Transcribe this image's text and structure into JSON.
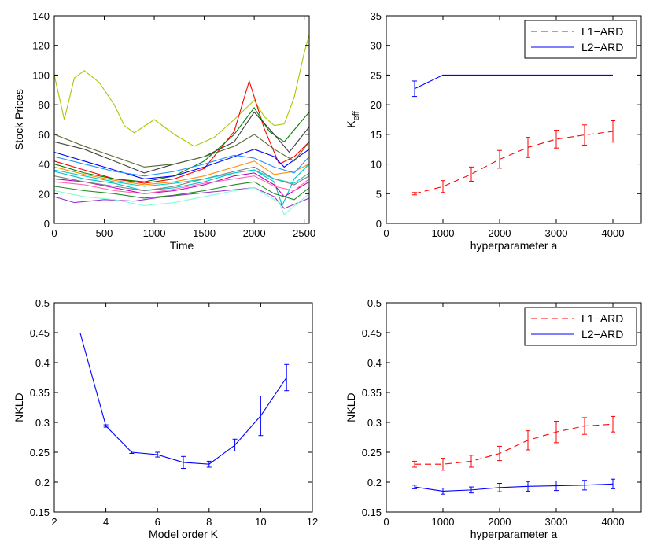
{
  "chart_data": [
    {
      "id": "stocks",
      "type": "line",
      "xlabel": "Time",
      "ylabel": "Stock Prices",
      "xlim": [
        0,
        2550
      ],
      "ylim": [
        0,
        140
      ],
      "xticks": [
        0,
        500,
        1000,
        1500,
        2000,
        2500
      ],
      "yticks": [
        0,
        20,
        40,
        60,
        80,
        100,
        120,
        140
      ],
      "grid": false,
      "series": [
        {
          "color": "#a8c800",
          "x": [
            0,
            100,
            200,
            300,
            450,
            600,
            700,
            800,
            1000,
            1200,
            1400,
            1600,
            1800,
            2000,
            2100,
            2200,
            2300,
            2400,
            2500,
            2550
          ],
          "values": [
            100,
            70,
            98,
            103,
            95,
            80,
            66,
            61,
            70,
            60,
            52,
            58,
            70,
            83,
            72,
            66,
            67,
            85,
            115,
            127
          ]
        },
        {
          "color": "#ff0000",
          "x": [
            0,
            300,
            600,
            900,
            1200,
            1500,
            1800,
            1950,
            2100,
            2250,
            2400,
            2550
          ],
          "values": [
            42,
            36,
            30,
            27,
            30,
            37,
            62,
            96,
            64,
            40,
            45,
            55
          ]
        },
        {
          "color": "#008000",
          "x": [
            0,
            300,
            600,
            900,
            1200,
            1500,
            1800,
            2000,
            2150,
            2300,
            2550
          ],
          "values": [
            40,
            34,
            30,
            28,
            32,
            42,
            60,
            78,
            62,
            55,
            75
          ]
        },
        {
          "color": "#404040",
          "x": [
            0,
            300,
            600,
            900,
            1200,
            1500,
            1800,
            2000,
            2200,
            2350,
            2550
          ],
          "values": [
            55,
            50,
            42,
            34,
            40,
            45,
            55,
            75,
            60,
            48,
            65
          ]
        },
        {
          "color": "#0000ff",
          "x": [
            0,
            300,
            600,
            900,
            1200,
            1500,
            1800,
            2000,
            2200,
            2300,
            2550
          ],
          "values": [
            48,
            42,
            36,
            30,
            32,
            38,
            45,
            50,
            45,
            38,
            50
          ]
        },
        {
          "color": "#00bfbf",
          "x": [
            0,
            300,
            600,
            900,
            1200,
            1500,
            1800,
            2000,
            2200,
            2280,
            2400,
            2550
          ],
          "values": [
            35,
            30,
            27,
            22,
            24,
            28,
            34,
            36,
            28,
            12,
            30,
            40
          ]
        },
        {
          "color": "#bf00bf",
          "x": [
            0,
            300,
            600,
            900,
            1200,
            1500,
            1800,
            2000,
            2200,
            2300,
            2550
          ],
          "values": [
            30,
            28,
            24,
            20,
            22,
            26,
            32,
            34,
            26,
            18,
            28
          ]
        },
        {
          "color": "#9932cc",
          "x": [
            0,
            200,
            500,
            800,
            1100,
            1400,
            1700,
            2000,
            2200,
            2300,
            2550
          ],
          "values": [
            18,
            14,
            16,
            15,
            18,
            20,
            22,
            24,
            18,
            10,
            17
          ]
        },
        {
          "color": "#7fffd4",
          "x": [
            0,
            300,
            600,
            900,
            1200,
            1500,
            1800,
            2000,
            2250,
            2300,
            2550
          ],
          "values": [
            22,
            18,
            16,
            12,
            14,
            18,
            22,
            24,
            14,
            6,
            20
          ]
        },
        {
          "color": "#ff8c00",
          "x": [
            0,
            300,
            600,
            900,
            1200,
            1500,
            1800,
            2000,
            2200,
            2400,
            2550
          ],
          "values": [
            38,
            33,
            29,
            26,
            28,
            32,
            38,
            42,
            33,
            35,
            40
          ]
        },
        {
          "color": "#228b22",
          "x": [
            0,
            300,
            600,
            900,
            1200,
            1500,
            1800,
            2000,
            2200,
            2400,
            2550
          ],
          "values": [
            25,
            22,
            20,
            17,
            19,
            22,
            26,
            28,
            20,
            16,
            24
          ]
        },
        {
          "color": "#1e90ff",
          "x": [
            0,
            300,
            600,
            900,
            1200,
            1500,
            1800,
            2000,
            2200,
            2400,
            2550
          ],
          "values": [
            45,
            40,
            35,
            32,
            35,
            40,
            46,
            44,
            38,
            34,
            45
          ]
        },
        {
          "color": "#808080",
          "x": [
            0,
            300,
            600,
            900,
            1200,
            1500,
            1800,
            2000,
            2200,
            2400,
            2550
          ],
          "values": [
            32,
            28,
            25,
            22,
            25,
            30,
            35,
            38,
            30,
            26,
            32
          ]
        },
        {
          "color": "#ff69b4",
          "x": [
            0,
            300,
            600,
            900,
            1200,
            1500,
            1800,
            2000,
            2200,
            2400,
            2550
          ],
          "values": [
            28,
            26,
            22,
            20,
            23,
            27,
            30,
            32,
            25,
            22,
            30
          ]
        },
        {
          "color": "#00ced1",
          "x": [
            0,
            300,
            600,
            900,
            1200,
            1500,
            1800,
            2000,
            2200,
            2400,
            2550
          ],
          "values": [
            36,
            32,
            28,
            25,
            27,
            30,
            34,
            36,
            30,
            27,
            34
          ]
        },
        {
          "color": "#556b2f",
          "x": [
            0,
            300,
            600,
            900,
            1200,
            1500,
            1800,
            2000,
            2200,
            2400,
            2550
          ],
          "values": [
            60,
            52,
            45,
            38,
            40,
            45,
            52,
            60,
            50,
            42,
            55
          ]
        }
      ]
    },
    {
      "id": "keff",
      "type": "line",
      "xlabel": "hyperparameter a",
      "ylabel": "K",
      "ylabel_sub": "eff",
      "xlim": [
        0,
        4500
      ],
      "ylim": [
        0,
        35
      ],
      "xticks": [
        0,
        1000,
        2000,
        3000,
        4000
      ],
      "yticks": [
        0,
        5,
        10,
        15,
        20,
        25,
        30,
        35
      ],
      "grid": false,
      "legend": "top-right",
      "series": [
        {
          "name": "L1−ARD",
          "color": "#ff0000",
          "dash": true,
          "x": [
            500,
            1000,
            1500,
            2000,
            2500,
            3000,
            3500,
            4000
          ],
          "values": [
            5.0,
            6.2,
            8.3,
            10.8,
            12.8,
            14.2,
            14.9,
            15.5
          ],
          "err": [
            0.2,
            1.0,
            1.2,
            1.5,
            1.7,
            1.5,
            1.7,
            1.8
          ]
        },
        {
          "name": "L2−ARD",
          "color": "#0000ff",
          "dash": false,
          "x": [
            500,
            1000,
            1500,
            2000,
            2500,
            3000,
            3500,
            4000
          ],
          "values": [
            22.7,
            25.0,
            25.0,
            25.0,
            25.0,
            25.0,
            25.0,
            25.0
          ],
          "err": [
            1.3,
            0,
            0,
            0,
            0,
            0,
            0,
            0
          ]
        }
      ]
    },
    {
      "id": "nkld_k",
      "type": "line",
      "xlabel": "Model order K",
      "ylabel": "NKLD",
      "xlim": [
        2,
        12
      ],
      "ylim": [
        0.15,
        0.5
      ],
      "xticks": [
        2,
        4,
        6,
        8,
        10,
        12
      ],
      "yticks": [
        0.15,
        0.2,
        0.25,
        0.3,
        0.35,
        0.4,
        0.45,
        0.5
      ],
      "grid": false,
      "series": [
        {
          "color": "#0000ff",
          "dash": false,
          "x": [
            3,
            4,
            5,
            6,
            7,
            8,
            9,
            10,
            11
          ],
          "values": [
            0.45,
            0.294,
            0.25,
            0.246,
            0.233,
            0.23,
            0.262,
            0.311,
            0.375
          ],
          "err": [
            0,
            0.002,
            0.002,
            0.004,
            0.01,
            0.005,
            0.01,
            0.033,
            0.022
          ]
        }
      ]
    },
    {
      "id": "nkld_a",
      "type": "line",
      "xlabel": "hyperparameter a",
      "ylabel": "NKLD",
      "xlim": [
        0,
        4500
      ],
      "ylim": [
        0.15,
        0.5
      ],
      "xticks": [
        0,
        1000,
        2000,
        3000,
        4000
      ],
      "yticks": [
        0.15,
        0.2,
        0.25,
        0.3,
        0.35,
        0.4,
        0.45,
        0.5
      ],
      "grid": false,
      "legend": "top-right",
      "series": [
        {
          "name": "L1−ARD",
          "color": "#ff0000",
          "dash": true,
          "x": [
            500,
            1000,
            1500,
            2000,
            2500,
            3000,
            3500,
            4000
          ],
          "values": [
            0.23,
            0.23,
            0.235,
            0.248,
            0.27,
            0.284,
            0.294,
            0.297
          ],
          "err": [
            0.005,
            0.01,
            0.01,
            0.012,
            0.016,
            0.018,
            0.014,
            0.013
          ]
        },
        {
          "name": "L2−ARD",
          "color": "#0000ff",
          "dash": false,
          "x": [
            500,
            1000,
            1500,
            2000,
            2500,
            3000,
            3500,
            4000
          ],
          "values": [
            0.192,
            0.185,
            0.187,
            0.191,
            0.193,
            0.194,
            0.195,
            0.197
          ],
          "err": [
            0.003,
            0.005,
            0.005,
            0.007,
            0.008,
            0.008,
            0.008,
            0.008
          ]
        }
      ]
    }
  ]
}
